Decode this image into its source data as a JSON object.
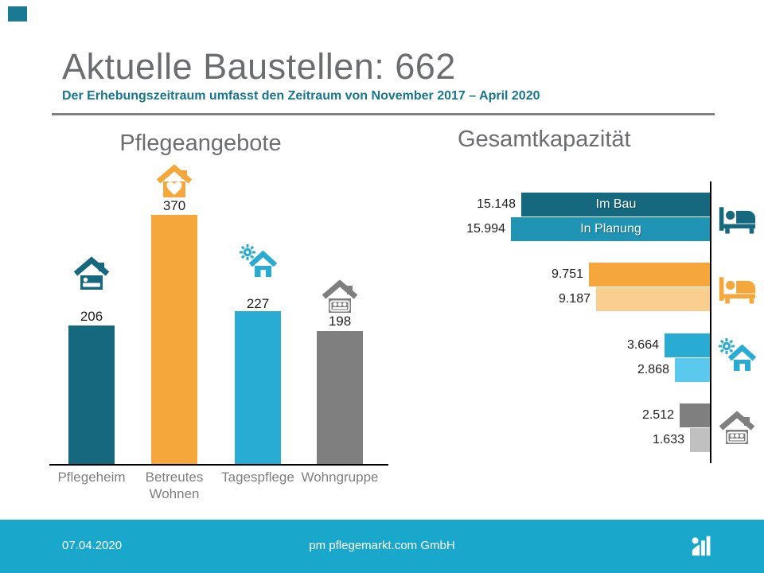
{
  "slide": {
    "title": "Aktuelle Baustellen: 662",
    "subtitle": "Der Erhebungszeitraum umfasst den Zeitraum von November 2017 – April 2020"
  },
  "footer": {
    "date": "07.04.2020",
    "company": "pm pflegemarkt.com GmbH",
    "logo_icon": "chart-logo-icon"
  },
  "colors": {
    "title_gray": "#6C6D70",
    "subtitle_teal": "#17768D",
    "divider_gray": "#808080",
    "footer_cyan": "#1AA7CC",
    "corner_accent_teal": "#1A7A94",
    "axis_black": "#000000"
  },
  "chart_data": [
    {
      "type": "bar",
      "title": "Pflegeangebote",
      "orientation": "vertical",
      "categories": [
        "Pflegeheim",
        "Betreutes Wohnen",
        "Tagespflege",
        "Wohngruppe"
      ],
      "values": [
        206,
        370,
        227,
        198
      ],
      "value_labels": [
        "206",
        "370",
        "227",
        "198"
      ],
      "bar_colors": [
        "#15687E",
        "#F5A73C",
        "#29ACD4",
        "#7F7F7F"
      ],
      "icons": [
        "house-bed-icon",
        "house-heart-icon",
        "house-sun-icon",
        "house-people-icon"
      ],
      "ylim": [
        0,
        400
      ],
      "grid": false,
      "legend": false
    },
    {
      "type": "bar",
      "title": "Gesamtkapazität",
      "orientation": "horizontal",
      "bars_grow": "right-to-left",
      "category_icons": [
        "bed-icon",
        "bed-icon",
        "house-sun-icon",
        "house-people-icon"
      ],
      "category_icon_colors": [
        "#15687E",
        "#F5A73C",
        "#29ACD4",
        "#7F7F7F"
      ],
      "series": [
        {
          "name": "Im Bau",
          "values": [
            15148,
            9751,
            3664,
            2512
          ],
          "value_labels": [
            "15.148",
            "9.751",
            "3.664",
            "2.512"
          ],
          "colors": [
            "#15687E",
            "#F5A73C",
            "#29ACD4",
            "#7F7F7F"
          ]
        },
        {
          "name": "In Planung",
          "values": [
            15994,
            9187,
            2868,
            1633
          ],
          "value_labels": [
            "15.994",
            "9.187",
            "2.868",
            "1.633"
          ],
          "colors": [
            "#2094B4",
            "#F9CE8E",
            "#5BC9EE",
            "#C0C0C0"
          ]
        }
      ],
      "xlim": [
        0,
        16000
      ],
      "grid": false,
      "legend": false
    }
  ]
}
